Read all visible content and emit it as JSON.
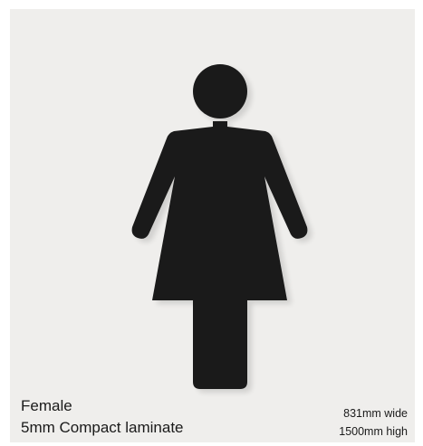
{
  "sign": {
    "icon": "female-toilet-icon",
    "color": "#1a1a1a",
    "background": "#efeeec"
  },
  "caption": {
    "name": "Female",
    "material": "5mm Compact laminate"
  },
  "dimensions": {
    "width": "831mm wide",
    "height": "1500mm high"
  }
}
